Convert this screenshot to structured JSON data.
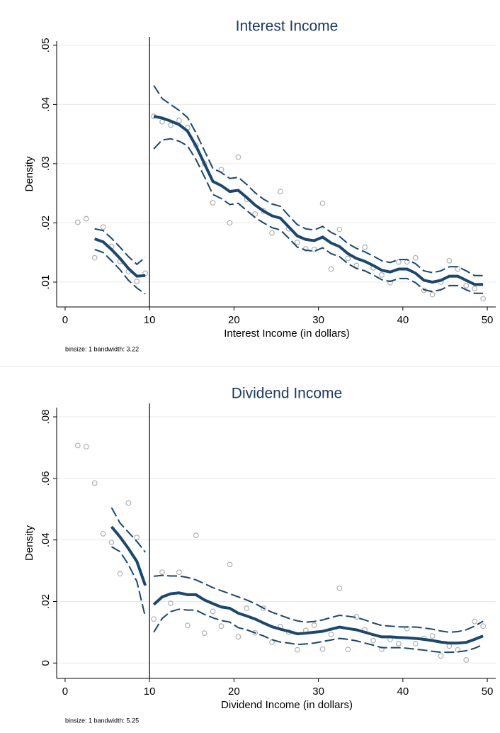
{
  "chart_data": [
    {
      "type": "rdplot",
      "title": "Interest Income",
      "xlabel": "Interest Income (in dollars)",
      "ylabel": "Density",
      "note": "binsize: 1 bandwidth: 3.22",
      "xlim": [
        -1,
        51
      ],
      "xticks": [
        0,
        10,
        20,
        30,
        40,
        50
      ],
      "ylim": [
        0.0058,
        0.0507
      ],
      "yticks": [
        {
          "value": 0.01,
          "label": ".01"
        },
        {
          "value": 0.02,
          "label": ".02"
        },
        {
          "value": 0.03,
          "label": ".03"
        },
        {
          "value": 0.04,
          "label": ".04"
        },
        {
          "value": 0.05,
          "label": ".05"
        }
      ],
      "grid": true,
      "cutoff": 10,
      "point_color": "#b0b0b0",
      "line_color": "#1a476f",
      "points": {
        "x": [
          1.5,
          2.5,
          3.5,
          4.5,
          5.5,
          6.5,
          7.5,
          8.5,
          9.5,
          10.5,
          11.5,
          12.5,
          13.5,
          14.5,
          15.5,
          16.5,
          17.5,
          18.5,
          19.5,
          20.5,
          21.5,
          22.5,
          23.5,
          24.5,
          25.5,
          26.5,
          27.5,
          28.5,
          29.5,
          30.5,
          31.5,
          32.5,
          33.5,
          34.5,
          35.5,
          36.5,
          37.5,
          38.5,
          39.5,
          40.5,
          41.5,
          42.5,
          43.5,
          44.5,
          45.5,
          46.5,
          47.5,
          48.5,
          49.5
        ],
        "values": [
          0.0201,
          0.0207,
          0.0141,
          0.0193,
          0.016,
          0.0135,
          0.0118,
          0.0101,
          0.0115,
          0.038,
          0.0371,
          0.0365,
          0.0373,
          0.0361,
          0.0331,
          0.03,
          0.0234,
          0.029,
          0.02,
          0.0311,
          0.024,
          0.0215,
          0.022,
          0.0183,
          0.0253,
          0.019,
          0.0167,
          0.0156,
          0.0155,
          0.0233,
          0.0122,
          0.0189,
          0.014,
          0.0128,
          0.0159,
          0.0124,
          0.0112,
          0.0099,
          0.0134,
          0.0134,
          0.0141,
          0.0086,
          0.0079,
          0.01,
          0.0136,
          0.0122,
          0.0094,
          0.0089,
          0.0072
        ]
      },
      "fits": [
        {
          "x": [
            3.5,
            4.5,
            5.5,
            6.5,
            7.5,
            8.5,
            9.5
          ],
          "values": [
            0.0173,
            0.0168,
            0.0155,
            0.014,
            0.0123,
            0.011,
            0.0111
          ],
          "upper": [
            0.019,
            0.0187,
            0.0174,
            0.0159,
            0.0143,
            0.013,
            0.0142
          ],
          "lower": [
            0.0155,
            0.015,
            0.0136,
            0.0121,
            0.0103,
            0.009,
            0.008
          ]
        },
        {
          "x": [
            10.5,
            11.5,
            12.5,
            13.5,
            14.5,
            15.5,
            16.5,
            17.5,
            18.5,
            19.5,
            20.5,
            21.5,
            22.5,
            23.5,
            24.5,
            25.5,
            26.5,
            27.5,
            28.5,
            29.5,
            30.5,
            31.5,
            32.5,
            33.5,
            34.5,
            35.5,
            36.5,
            37.5,
            38.5,
            39.5,
            40.5,
            41.5,
            42.5,
            43.5,
            44.5,
            45.5,
            46.5,
            47.5,
            48.5,
            49.5
          ],
          "values": [
            0.038,
            0.0377,
            0.0372,
            0.0366,
            0.0355,
            0.033,
            0.03,
            0.027,
            0.0263,
            0.0253,
            0.0255,
            0.0243,
            0.023,
            0.022,
            0.0212,
            0.0208,
            0.0193,
            0.0178,
            0.0172,
            0.017,
            0.0176,
            0.0166,
            0.016,
            0.0148,
            0.014,
            0.0135,
            0.0128,
            0.012,
            0.0117,
            0.0122,
            0.0122,
            0.0115,
            0.0103,
            0.01,
            0.0103,
            0.011,
            0.011,
            0.0103,
            0.0096,
            0.0096
          ],
          "upper": [
            0.0432,
            0.041,
            0.04,
            0.039,
            0.0378,
            0.0352,
            0.0322,
            0.0292,
            0.0285,
            0.0275,
            0.0277,
            0.0265,
            0.0251,
            0.024,
            0.0232,
            0.0228,
            0.0212,
            0.0197,
            0.019,
            0.0188,
            0.0194,
            0.0184,
            0.0177,
            0.0165,
            0.0157,
            0.0151,
            0.0144,
            0.0136,
            0.0133,
            0.0138,
            0.0138,
            0.0131,
            0.0119,
            0.0116,
            0.0119,
            0.0126,
            0.0126,
            0.0119,
            0.0111,
            0.0111
          ],
          "lower": [
            0.0325,
            0.034,
            0.0342,
            0.0338,
            0.033,
            0.0307,
            0.0278,
            0.0248,
            0.0241,
            0.0231,
            0.0233,
            0.0221,
            0.0209,
            0.02,
            0.0192,
            0.0188,
            0.0174,
            0.0159,
            0.0154,
            0.0152,
            0.0158,
            0.0148,
            0.0143,
            0.0131,
            0.0123,
            0.0119,
            0.0112,
            0.0104,
            0.0101,
            0.0106,
            0.0106,
            0.0099,
            0.0087,
            0.0084,
            0.0087,
            0.0094,
            0.0094,
            0.0087,
            0.0081,
            0.0081
          ]
        }
      ]
    },
    {
      "type": "rdplot",
      "title": "Dividend Income",
      "xlabel": "Dividend Income (in dollars)",
      "ylabel": "Density",
      "note": "binsize: 1 bandwidth: 5.25",
      "xlim": [
        -1,
        51
      ],
      "xticks": [
        0,
        10,
        20,
        30,
        40,
        50
      ],
      "ylim": [
        -0.005,
        0.083
      ],
      "yticks": [
        0,
        {
          "value": 0.02,
          "label": ".02"
        },
        {
          "value": 0.04,
          "label": ".04"
        },
        {
          "value": 0.06,
          "label": ".06"
        },
        {
          "value": 0.08,
          "label": ".08"
        }
      ],
      "grid": true,
      "cutoff": 10,
      "point_color": "#b0b0b0",
      "line_color": "#1a476f",
      "points": {
        "x": [
          1.5,
          2.5,
          3.5,
          4.5,
          5.5,
          6.5,
          7.5,
          8.5,
          10.5,
          11.5,
          12.5,
          13.5,
          14.5,
          15.5,
          16.5,
          17.5,
          18.5,
          19.5,
          20.5,
          21.5,
          22.5,
          23.5,
          24.5,
          25.5,
          26.5,
          27.5,
          28.5,
          29.5,
          30.5,
          31.5,
          32.5,
          33.5,
          34.5,
          35.5,
          36.5,
          37.5,
          38.5,
          39.5,
          40.5,
          41.5,
          42.5,
          43.5,
          44.5,
          45.5,
          46.5,
          47.5,
          48.5,
          49.5
        ],
        "values": [
          0.0707,
          0.0703,
          0.0585,
          0.042,
          0.0392,
          0.029,
          0.052,
          0.0408,
          0.0143,
          0.0295,
          0.0194,
          0.0295,
          0.0122,
          0.0415,
          0.0097,
          0.0168,
          0.012,
          0.032,
          0.0085,
          0.0178,
          0.0098,
          0.0178,
          0.0068,
          0.0118,
          0.01,
          0.0043,
          0.0106,
          0.0123,
          0.0045,
          0.0093,
          0.0243,
          0.0044,
          0.015,
          0.0108,
          0.0073,
          0.0045,
          0.0076,
          0.0063,
          0.0112,
          0.0063,
          0.008,
          0.0088,
          0.0023,
          0.0055,
          0.0043,
          0.001,
          0.0135,
          0.012
        ]
      },
      "fits": [
        {
          "x": [
            5.5,
            6.5,
            7.5,
            8.5,
            9.5
          ],
          "values": [
            0.0443,
            0.041,
            0.0372,
            0.033,
            0.0252
          ],
          "upper": [
            0.0505,
            0.0455,
            0.0425,
            0.0395,
            0.036
          ],
          "lower": [
            0.0378,
            0.0362,
            0.032,
            0.0265,
            0.015
          ]
        },
        {
          "x": [
            10.5,
            11.5,
            12.5,
            13.5,
            14.5,
            15.5,
            16.5,
            17.5,
            18.5,
            19.5,
            20.5,
            21.5,
            22.5,
            23.5,
            24.5,
            25.5,
            26.5,
            27.5,
            28.5,
            29.5,
            30.5,
            31.5,
            32.5,
            33.5,
            34.5,
            35.5,
            36.5,
            37.5,
            38.5,
            39.5,
            40.5,
            41.5,
            42.5,
            43.5,
            44.5,
            45.5,
            46.5,
            47.5,
            48.5,
            49.5
          ],
          "values": [
            0.019,
            0.0215,
            0.0225,
            0.0228,
            0.0222,
            0.0222,
            0.0205,
            0.0193,
            0.0182,
            0.0178,
            0.0162,
            0.0153,
            0.0143,
            0.013,
            0.0118,
            0.011,
            0.0103,
            0.0095,
            0.0097,
            0.01,
            0.0103,
            0.011,
            0.0117,
            0.0112,
            0.0108,
            0.01,
            0.0092,
            0.0085,
            0.0085,
            0.0083,
            0.0082,
            0.008,
            0.0077,
            0.0073,
            0.0068,
            0.0065,
            0.0065,
            0.0067,
            0.0077,
            0.0088
          ],
          "upper": [
            0.0282,
            0.0285,
            0.0283,
            0.0283,
            0.0278,
            0.027,
            0.0258,
            0.0245,
            0.0235,
            0.0225,
            0.0215,
            0.0205,
            0.0193,
            0.0178,
            0.0165,
            0.0155,
            0.0145,
            0.0137,
            0.0133,
            0.0135,
            0.014,
            0.0148,
            0.0155,
            0.0152,
            0.0148,
            0.014,
            0.013,
            0.0122,
            0.012,
            0.0118,
            0.0117,
            0.0117,
            0.0114,
            0.011,
            0.0104,
            0.01,
            0.0102,
            0.0108,
            0.012,
            0.0136
          ],
          "lower": [
            0.01,
            0.0145,
            0.0167,
            0.0175,
            0.0172,
            0.0172,
            0.0158,
            0.0147,
            0.0138,
            0.0133,
            0.0115,
            0.0108,
            0.0098,
            0.0088,
            0.0076,
            0.0068,
            0.0065,
            0.006,
            0.0062,
            0.0065,
            0.007,
            0.0075,
            0.008,
            0.0077,
            0.0072,
            0.0065,
            0.0058,
            0.005,
            0.005,
            0.005,
            0.0048,
            0.0045,
            0.0042,
            0.0038,
            0.0035,
            0.0035,
            0.0036,
            0.004,
            0.0048,
            0.006
          ]
        }
      ]
    }
  ]
}
